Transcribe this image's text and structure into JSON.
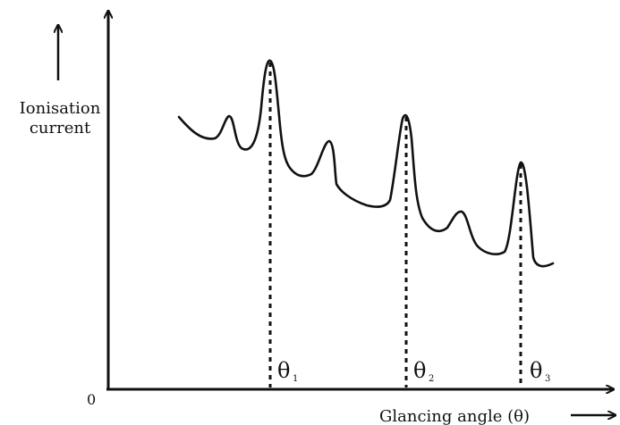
{
  "figure": {
    "y_axis_label_line1": "Ionisation",
    "y_axis_label_line2": "current",
    "x_axis_label": "Glancing angle (θ)",
    "origin_label": "0",
    "peaks": [
      {
        "symbol": "θ",
        "subscript": "1"
      },
      {
        "symbol": "θ",
        "subscript": "2"
      },
      {
        "symbol": "θ",
        "subscript": "3"
      }
    ],
    "colors": {
      "ink": "#111111",
      "background": "#ffffff"
    }
  }
}
